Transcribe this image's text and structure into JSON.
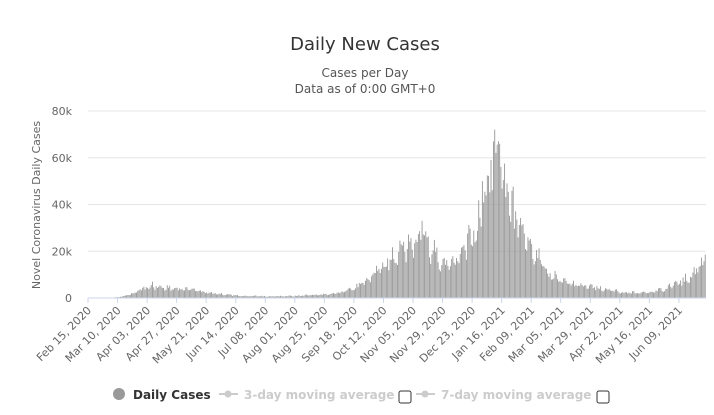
{
  "chart_data": {
    "type": "bar",
    "title": "Daily New Cases",
    "subtitle": "Cases per Day",
    "subtitle2": "Data as of 0:00 GMT+0",
    "ylabel": "Novel Coronavirus Daily Cases",
    "ylim": [
      0,
      80000
    ],
    "yticks": [
      "0",
      "20k",
      "40k",
      "60k",
      "80k"
    ],
    "grid": true,
    "x_start": "2020-02-15",
    "x_end": "2021-06-30",
    "x_tick_labels": [
      "Feb 15, 2020",
      "Mar 10, 2020",
      "Apr 03, 2020",
      "Apr 27, 2020",
      "May 21, 2020",
      "Jun 14, 2020",
      "Jul 08, 2020",
      "Aug 01, 2020",
      "Aug 25, 2020",
      "Sep 18, 2020",
      "Oct 12, 2020",
      "Nov 05, 2020",
      "Nov 29, 2020",
      "Dec 23, 2020",
      "Jan 16, 2021",
      "Feb 09, 2021",
      "Mar 05, 2021",
      "Mar 29, 2021",
      "Apr 22, 2021",
      "May 16, 2021",
      "Jun 09, 2021"
    ],
    "series": [
      {
        "name": "Daily Cases",
        "color": "#999999",
        "description": "daily new cases (approximate, read from chart)",
        "anchors": [
          [
            "2020-02-15",
            0
          ],
          [
            "2020-03-10",
            300
          ],
          [
            "2020-03-20",
            1500
          ],
          [
            "2020-03-28",
            3500
          ],
          [
            "2020-04-05",
            5000
          ],
          [
            "2020-04-15",
            4500
          ],
          [
            "2020-04-27",
            4000
          ],
          [
            "2020-05-10",
            3500
          ],
          [
            "2020-05-21",
            2500
          ],
          [
            "2020-06-05",
            1500
          ],
          [
            "2020-06-14",
            1000
          ],
          [
            "2020-07-08",
            700
          ],
          [
            "2020-08-01",
            900
          ],
          [
            "2020-08-25",
            1500
          ],
          [
            "2020-09-10",
            2500
          ],
          [
            "2020-09-18",
            4000
          ],
          [
            "2020-09-30",
            8000
          ],
          [
            "2020-10-12",
            15000
          ],
          [
            "2020-10-25",
            20000
          ],
          [
            "2020-11-05",
            23000
          ],
          [
            "2020-11-12",
            26000
          ],
          [
            "2020-11-20",
            20000
          ],
          [
            "2020-11-29",
            14000
          ],
          [
            "2020-12-08",
            16000
          ],
          [
            "2020-12-18",
            22000
          ],
          [
            "2020-12-26",
            30000
          ],
          [
            "2021-01-01",
            45000
          ],
          [
            "2021-01-08",
            58000
          ],
          [
            "2021-01-13",
            62000
          ],
          [
            "2021-01-17",
            55000
          ],
          [
            "2021-01-23",
            40000
          ],
          [
            "2021-01-30",
            30000
          ],
          [
            "2021-02-09",
            20000
          ],
          [
            "2021-02-20",
            12000
          ],
          [
            "2021-03-05",
            7000
          ],
          [
            "2021-03-15",
            5500
          ],
          [
            "2021-03-29",
            5000
          ],
          [
            "2021-04-10",
            3500
          ],
          [
            "2021-04-22",
            2500
          ],
          [
            "2021-05-05",
            2200
          ],
          [
            "2021-05-16",
            2500
          ],
          [
            "2021-05-26",
            3500
          ],
          [
            "2021-06-05",
            6000
          ],
          [
            "2021-06-15",
            8000
          ],
          [
            "2021-06-24",
            12000
          ],
          [
            "2021-06-30",
            17000
          ]
        ],
        "spikes": [
          [
            "2020-04-07",
            7000
          ],
          [
            "2020-11-12",
            33000
          ],
          [
            "2020-12-31",
            50000
          ],
          [
            "2021-01-09",
            67000
          ],
          [
            "2021-01-14",
            66000
          ]
        ]
      }
    ]
  },
  "legend": {
    "items": [
      {
        "label": "Daily Cases",
        "color": "#999999",
        "active": true,
        "has_checkbox": false
      },
      {
        "label": "3-day moving average",
        "color": "#cccccc",
        "active": false,
        "has_checkbox": true
      },
      {
        "label": "7-day moving average",
        "color": "#cccccc",
        "active": false,
        "has_checkbox": true
      }
    ]
  }
}
